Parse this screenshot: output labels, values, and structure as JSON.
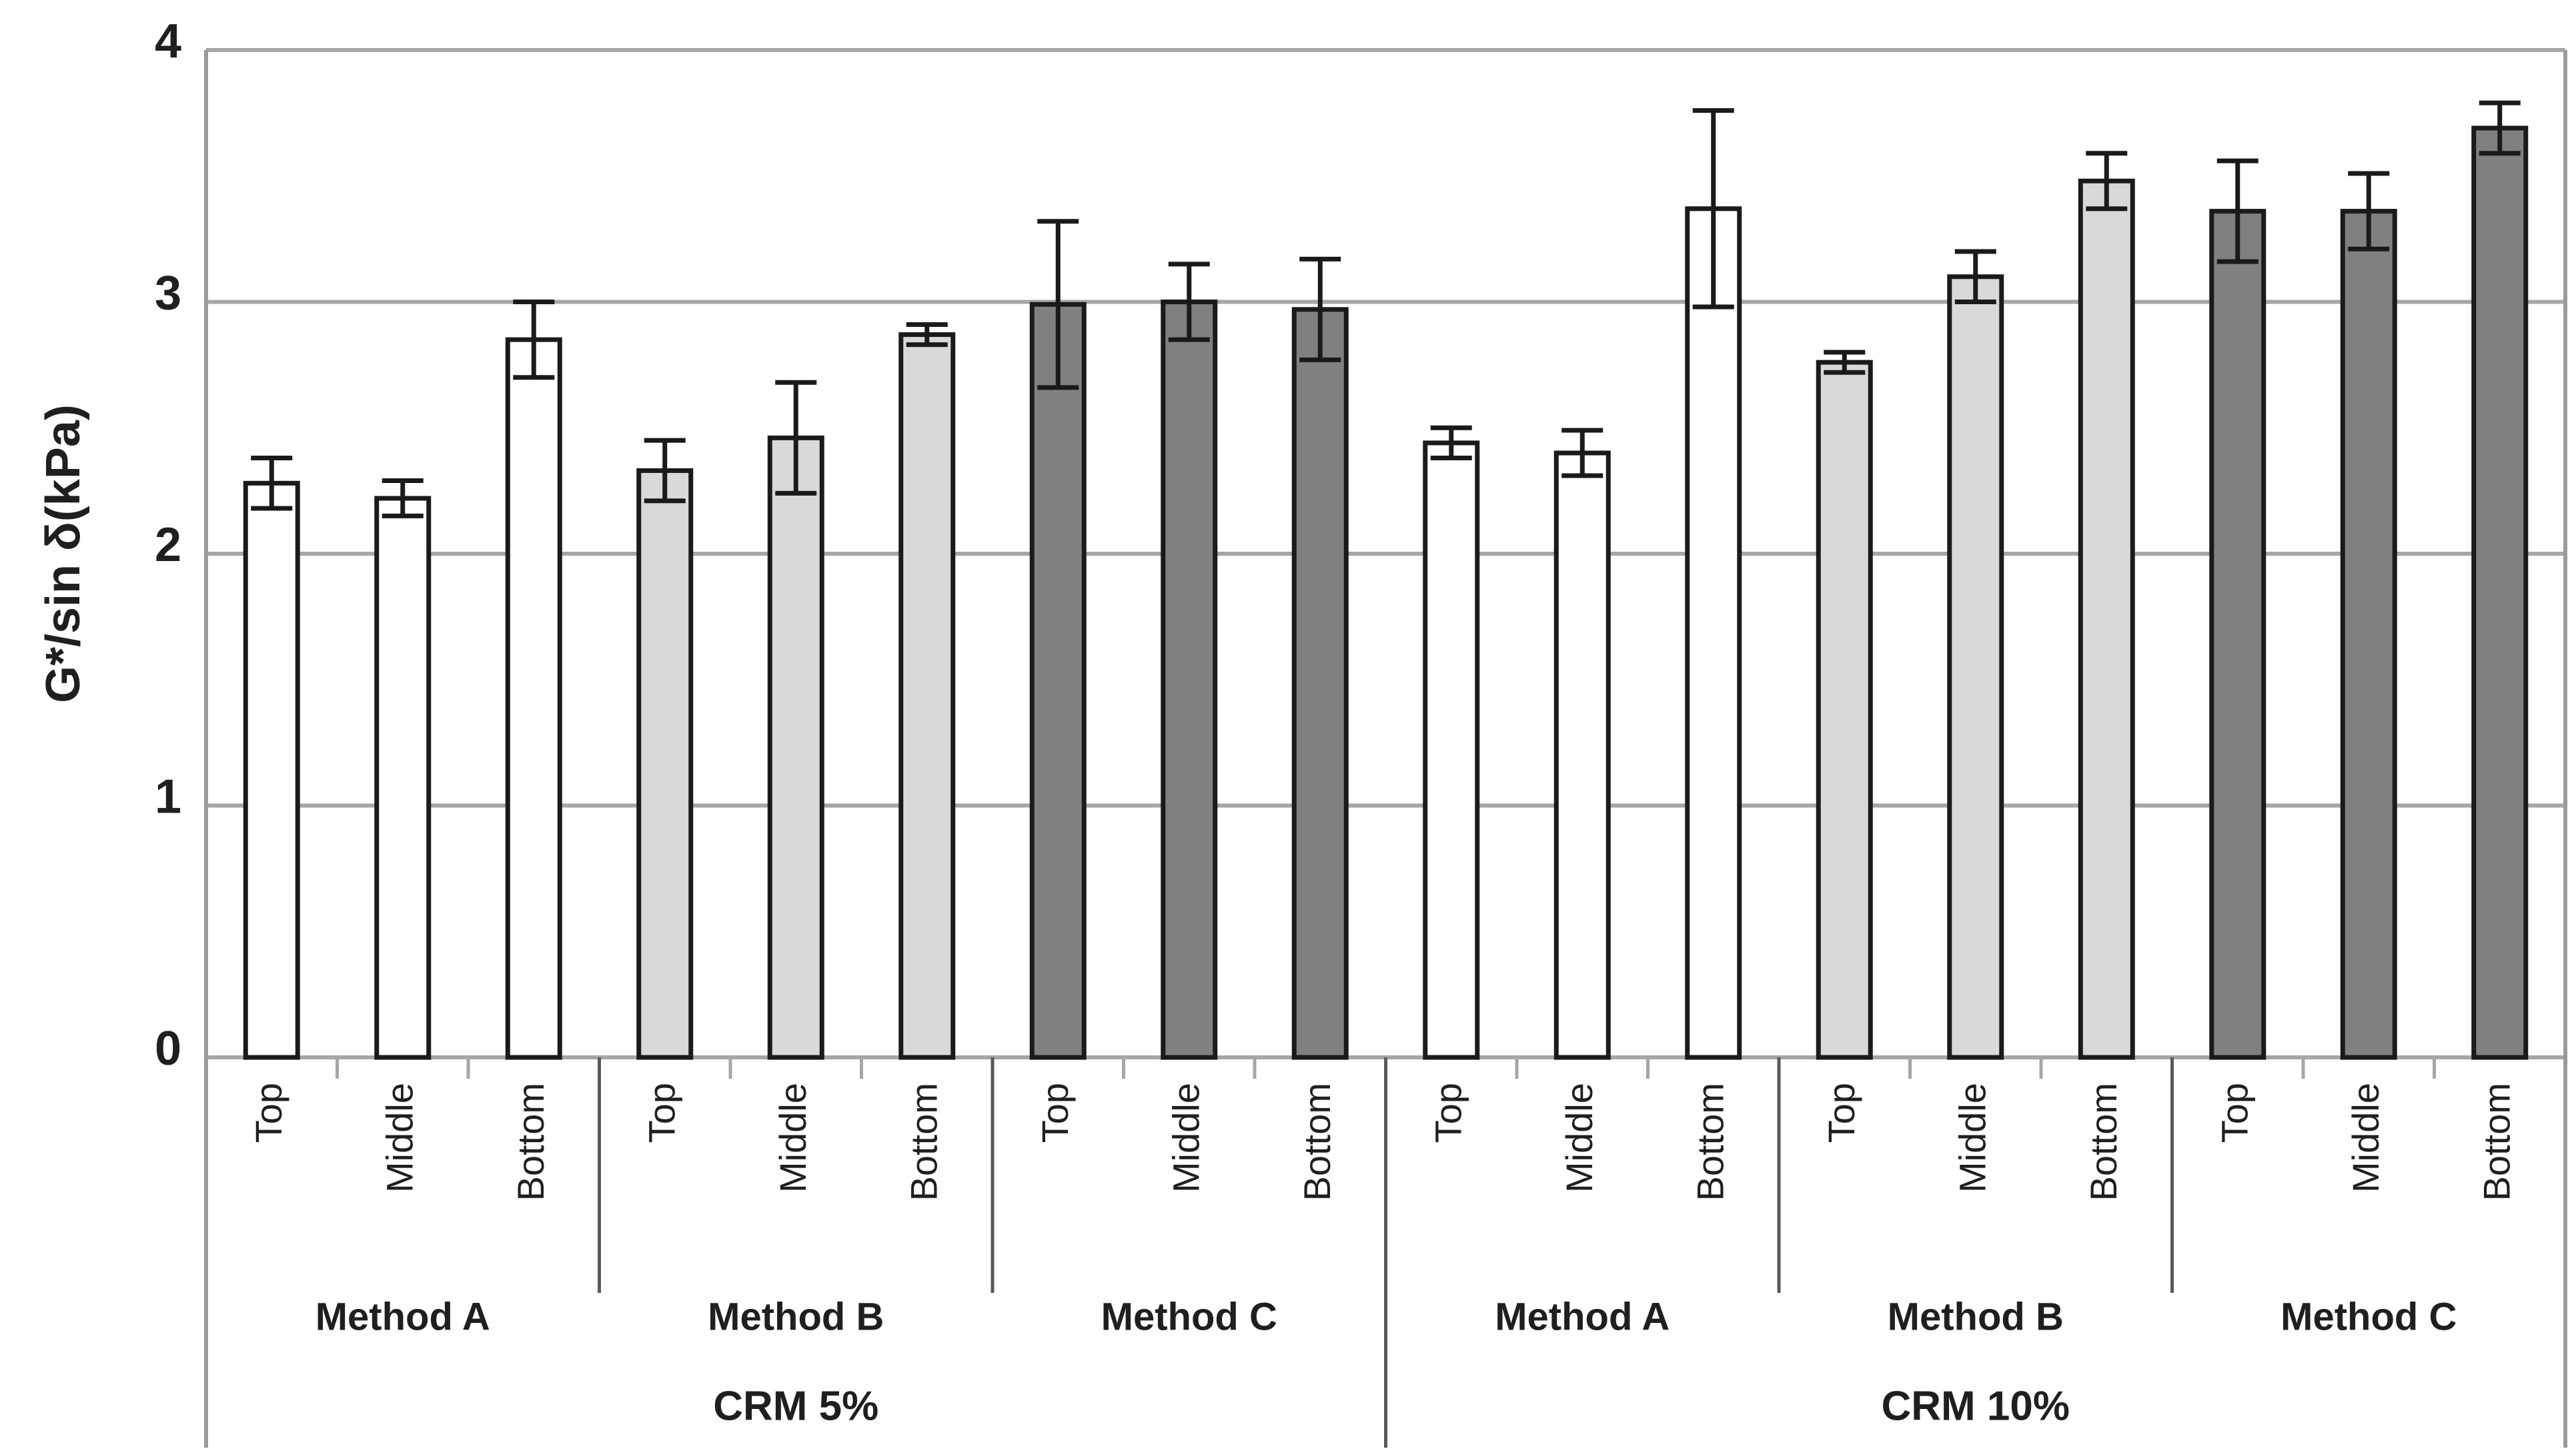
{
  "chart_data": {
    "type": "bar",
    "title": "",
    "ylabel": "G*/sin δ(kPa)",
    "ylim": [
      0,
      4
    ],
    "yticks": [
      "0",
      "1",
      "2",
      "3",
      "4"
    ],
    "grid": "horizontal gridlines at every integer, plot area framed",
    "legend": "none",
    "x_hierarchy_levels": [
      "position",
      "method",
      "crm_content"
    ],
    "groups": [
      {
        "label": "CRM 5%",
        "methods": [
          {
            "label": "Method A",
            "bar_fill": "#ffffff",
            "bars": [
              {
                "label": "Top",
                "value": 2.28,
                "error": 0.1
              },
              {
                "label": "Middle",
                "value": 2.22,
                "error": 0.07
              },
              {
                "label": "Bottom",
                "value": 2.85,
                "error": 0.15
              }
            ]
          },
          {
            "label": "Method B",
            "bar_fill": "#d9d9d9",
            "bars": [
              {
                "label": "Top",
                "value": 2.33,
                "error": 0.12
              },
              {
                "label": "Middle",
                "value": 2.46,
                "error": 0.22
              },
              {
                "label": "Bottom",
                "value": 2.87,
                "error": 0.04
              }
            ]
          },
          {
            "label": "Method C",
            "bar_fill": "#808080",
            "bars": [
              {
                "label": "Top",
                "value": 2.99,
                "error": 0.33
              },
              {
                "label": "Middle",
                "value": 3.0,
                "error": 0.15
              },
              {
                "label": "Bottom",
                "value": 2.97,
                "error": 0.2
              }
            ]
          }
        ]
      },
      {
        "label": "CRM 10%",
        "methods": [
          {
            "label": "Method A",
            "bar_fill": "#ffffff",
            "bars": [
              {
                "label": "Top",
                "value": 2.44,
                "error": 0.06
              },
              {
                "label": "Middle",
                "value": 2.4,
                "error": 0.09
              },
              {
                "label": "Bottom",
                "value": 3.37,
                "error": 0.39
              }
            ]
          },
          {
            "label": "Method B",
            "bar_fill": "#d9d9d9",
            "bars": [
              {
                "label": "Top",
                "value": 2.76,
                "error": 0.04
              },
              {
                "label": "Middle",
                "value": 3.1,
                "error": 0.1
              },
              {
                "label": "Bottom",
                "value": 3.48,
                "error": 0.11
              }
            ]
          },
          {
            "label": "Method C",
            "bar_fill": "#808080",
            "bars": [
              {
                "label": "Top",
                "value": 3.36,
                "error": 0.2
              },
              {
                "label": "Middle",
                "value": 3.36,
                "error": 0.15
              },
              {
                "label": "Bottom",
                "value": 3.69,
                "error": 0.1
              }
            ]
          }
        ]
      }
    ],
    "colors": {
      "bar_border": "#1a1a1a",
      "error_bar": "#1a1a1a",
      "gridline": "#a6a6a6",
      "axis_line": "#9a9a9a",
      "category_divider": "#595959",
      "text": "#1f1f1f",
      "background": "#ffffff"
    }
  }
}
